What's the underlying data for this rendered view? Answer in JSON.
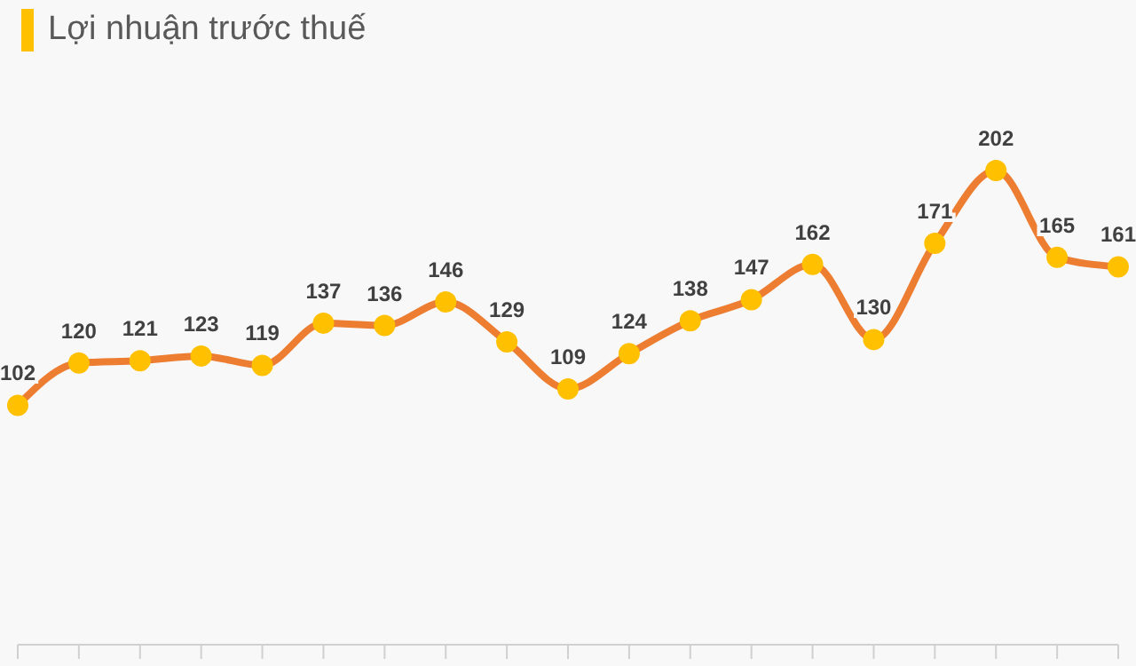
{
  "chart_data": {
    "type": "line",
    "title": "Lợi nhuận trước thuế",
    "categories": [
      null,
      null,
      null,
      null,
      null,
      null,
      null,
      null,
      null,
      null,
      null,
      null,
      null,
      null,
      null,
      null,
      null,
      null,
      null
    ],
    "series": [
      {
        "color": "#ed7d31",
        "values": [
          102,
          120,
          121,
          123,
          119,
          137,
          136,
          146,
          129,
          109,
          124,
          138,
          147,
          162,
          130,
          171,
          202,
          165,
          161
        ]
      }
    ],
    "data_labels": true,
    "marker": "circle",
    "line_style": "solid"
  }
}
